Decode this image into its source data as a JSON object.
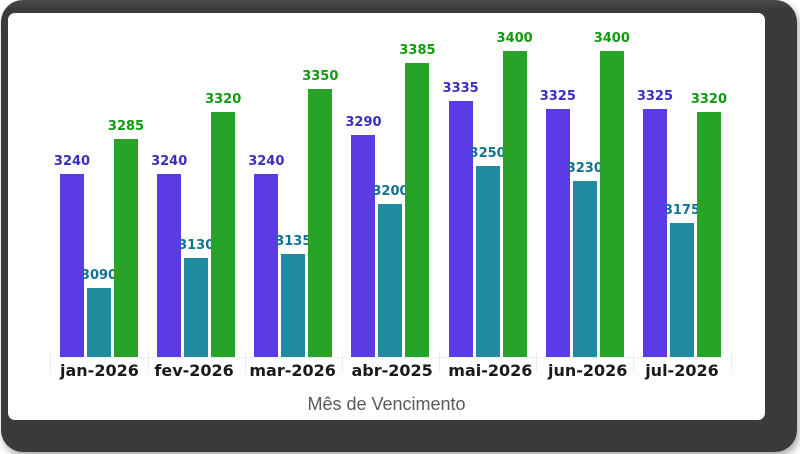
{
  "window": {
    "frame_color": "#3a3a3a",
    "panel_color": "#ffffff"
  },
  "chart_data": {
    "type": "bar",
    "xlabel": "Mês de Vencimento",
    "xlabel_color": "#595959",
    "tick_label_color": "#1a1a1a",
    "ylim": [
      3000,
      3450
    ],
    "grid": false,
    "legend": "none",
    "categories": [
      "jan-2026",
      "fev-2026",
      "mar-2026",
      "abr-2025",
      "mai-2026",
      "jun-2026",
      "jul-2026"
    ],
    "series": [
      {
        "name": "purple",
        "bar_color": "#5a3be6",
        "label_color": "#3a2ec2",
        "values": [
          3240,
          3240,
          3240,
          3290,
          3335,
          3325,
          3325
        ]
      },
      {
        "name": "teal",
        "bar_color": "#1e8c9e",
        "label_color": "#0f7490",
        "values": [
          3090,
          3130,
          3135,
          3200,
          3250,
          3230,
          3175
        ]
      },
      {
        "name": "green",
        "bar_color": "#27a427",
        "label_color": "#0f9b0f",
        "values": [
          3285,
          3320,
          3350,
          3385,
          3400,
          3400,
          3320
        ]
      }
    ]
  }
}
